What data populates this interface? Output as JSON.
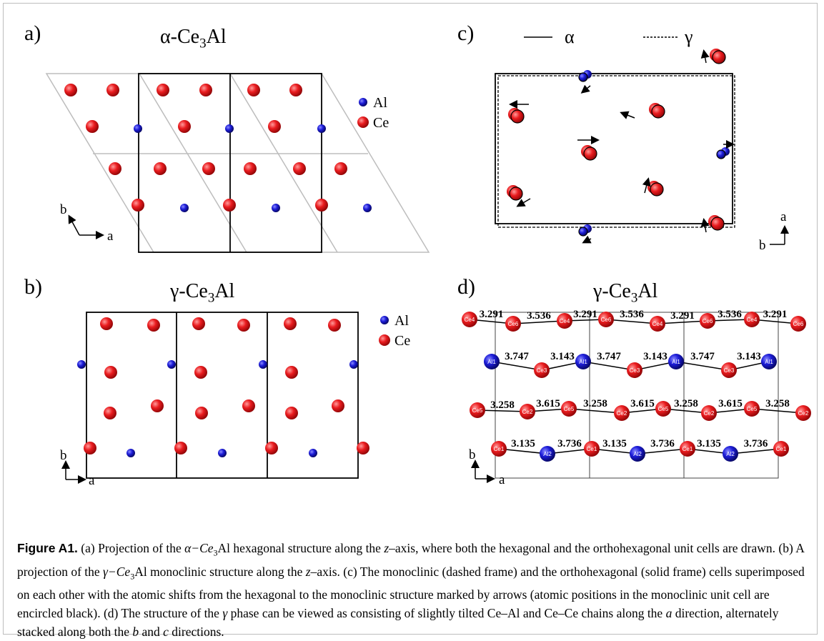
{
  "figure_label": "Figure A1.",
  "caption_parts": {
    "p1": " (a) Projection of the ",
    "alpha_ce3al_a": "α−Ce",
    "sub3_a": "3",
    "al_a": "Al",
    "p2": " hexagonal structure along the ",
    "z1": "z",
    "p3": "–axis, where both the hexagonal and the orthohexagonal unit cells are drawn. (b) A projection of the ",
    "gamma_ce3al_b": "γ−Ce",
    "sub3_b": "3",
    "al_b": "Al",
    "p4": " monoclinic structure along the ",
    "z2": "z",
    "p5": "–axis. (c) The monoclinic (dashed frame) and the orthohexagonal (solid frame) cells superimposed on each other with the atomic shifts from the hexagonal to the monoclinic structure marked by arrows (atomic positions in the monoclinic unit cell are encircled black). (d) The structure of the ",
    "gamma": "γ",
    "p6": " phase can be viewed as consisting of slightly tilted Ce–Al and Ce–Ce chains along the ",
    "a_dir": "a",
    "p7": " direction, alternately stacked along both the ",
    "b_dir": "b",
    "p8": " and ",
    "c_dir": "c",
    "p9": " directions."
  },
  "panels": {
    "a": {
      "label": "a)",
      "title_pre": "α-Ce",
      "title_sub": "3",
      "title_post": "Al",
      "legend": [
        "Al",
        "Ce"
      ],
      "axes": {
        "b": "b",
        "a": "a"
      }
    },
    "b": {
      "label": "b)",
      "title_pre": "γ-Ce",
      "title_sub": "3",
      "title_post": "Al",
      "legend": [
        "Al",
        "Ce"
      ],
      "axes": {
        "b": "b",
        "a": "a"
      }
    },
    "c": {
      "label": "c)",
      "legend_alpha": "α",
      "legend_gamma": "γ",
      "axes": {
        "a": "a",
        "b": "b"
      }
    },
    "d": {
      "label": "d)",
      "title_pre": "γ-Ce",
      "title_sub": "3",
      "title_post": "Al",
      "axes": {
        "b": "b",
        "a": "a"
      },
      "row1_atoms": [
        "Ce4",
        "Ce6",
        "Ce4",
        "Ce6",
        "Ce4",
        "Ce6",
        "Ce4",
        "Ce6"
      ],
      "row1_dists": [
        "3.291",
        "3.536",
        "3.291",
        "3.536",
        "3.291",
        "3.536",
        "3.291"
      ],
      "row2_atoms": [
        "Al1",
        "Ce3",
        "Al1",
        "Ce3",
        "Al1",
        "Ce3",
        "Al1"
      ],
      "row2_dists": [
        "3.747",
        "3.143",
        "3.747",
        "3.143",
        "3.747",
        "3.143"
      ],
      "row3_atoms": [
        "Ce5",
        "Ce2",
        "Ce5",
        "Ce2",
        "Ce5",
        "Ce2",
        "Ce5",
        "Ce2"
      ],
      "row3_dists": [
        "3.258",
        "3.615",
        "3.258",
        "3.615",
        "3.258",
        "3.615",
        "3.258"
      ],
      "row4_atoms": [
        "Ce1",
        "Al2",
        "Ce1",
        "Al2",
        "Ce1",
        "Al2",
        "Ce1"
      ],
      "row4_dists": [
        "3.135",
        "3.736",
        "3.135",
        "3.736",
        "3.135",
        "3.736"
      ]
    }
  },
  "colors": {
    "ce": "#e8161b",
    "al": "#1a1ad6",
    "frame": "#000000",
    "hex_cell": "#bdbdbd"
  }
}
